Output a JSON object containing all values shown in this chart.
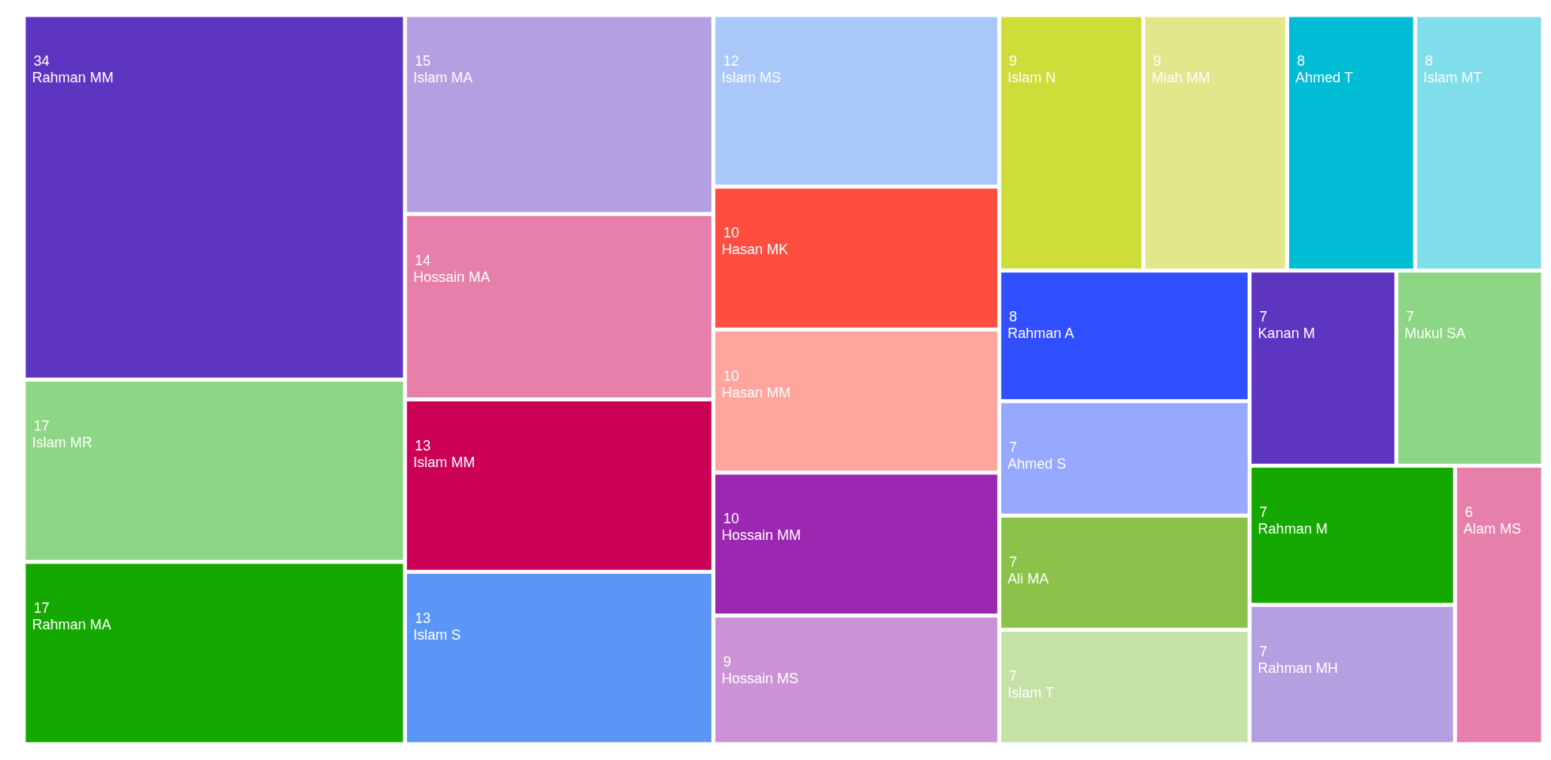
{
  "chart_data": {
    "type": "other",
    "data_labels": true,
    "categories": [
      "Rahman MM",
      "Islam MR",
      "Rahman MA",
      "Islam MA",
      "Hossain MA",
      "Islam MM",
      "Islam S",
      "Islam MS",
      "Hasan MK",
      "Hasan MM",
      "Hossain MM",
      "Hossain MS",
      "Islam N",
      "Miah MM",
      "Ahmed T",
      "Islam MT",
      "Rahman A",
      "Ahmed S",
      "Ali MA",
      "Islam T",
      "Kanan M",
      "Mukul SA",
      "Rahman M",
      "Rahman MH",
      "Alam MS"
    ],
    "values": [
      34,
      17,
      17,
      15,
      14,
      13,
      13,
      12,
      10,
      10,
      10,
      9,
      9,
      9,
      8,
      8,
      8,
      7,
      7,
      7,
      7,
      7,
      7,
      7,
      6
    ],
    "colors": [
      "#5e35c1",
      "#8dd685",
      "#14a800",
      "#b49fe0",
      "#e680ab",
      "#cc0055",
      "#5b95f5",
      "#a9c8f9",
      "#ff4d40",
      "#ffa59e",
      "#9c27b0",
      "#cb93d6",
      "#cfdd3a",
      "#e1e78a",
      "#00bcd4",
      "#80deea",
      "#304ffe",
      "#96a8ff",
      "#8bc34a",
      "#c5e1a5",
      "#5e35c1",
      "#8dd685",
      "#14a800",
      "#b49fe0",
      "#e680ab"
    ]
  }
}
